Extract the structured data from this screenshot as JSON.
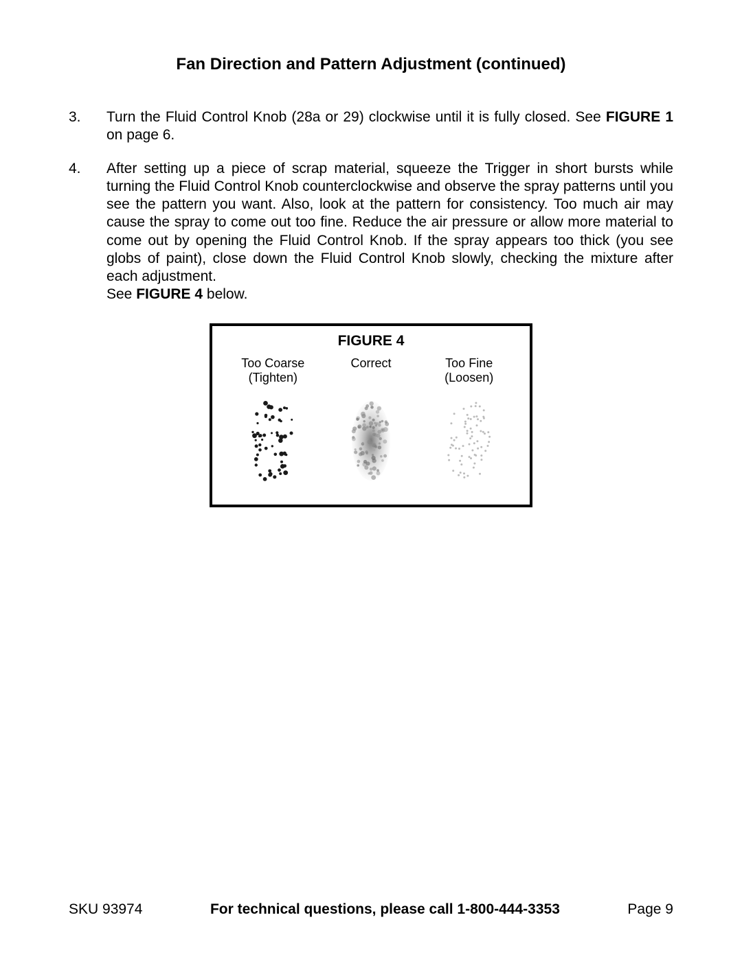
{
  "title": "Fan Direction and Pattern Adjustment (continued)",
  "items": [
    {
      "num": "3.",
      "text_pre": "Turn the Fluid Control Knob (28a or 29) clockwise until it is fully closed. See ",
      "bold": "FIGURE 1",
      "text_post": " on page 6."
    },
    {
      "num": "4.",
      "text_pre": "After setting up a piece of scrap material, squeeze the Trigger in short bursts while turning the Fluid Control Knob counterclockwise and observe the spray patterns until you see the pattern you want.  Also, look at the pattern for consistency.  Too much air may cause the spray to come out too fine.  Reduce the air pressure or allow more material to come out by opening the Fluid Control Knob.  If the spray appears too thick (you see globs of paint), close down the Fluid Control Knob slowly, checking the mixture after each adjustment.",
      "line2_pre": "See ",
      "line2_bold": "FIGURE 4",
      "line2_post": " below."
    }
  ],
  "figure": {
    "title": "FIGURE 4",
    "cols": [
      {
        "l1": "Too Coarse",
        "l2": "(Tighten)"
      },
      {
        "l1": "Correct",
        "l2": ""
      },
      {
        "l1": "Too Fine",
        "l2": "(Loosen)"
      }
    ],
    "patterns": {
      "coarse": {
        "dot_color": "#1a1a1a",
        "dot_size_min": 3,
        "dot_size_max": 7,
        "count": 55
      },
      "correct": {
        "color_dark": "#7a7a7a",
        "color_light": "#d8d8d8"
      },
      "fine": {
        "dot_color": "#bcbcbc",
        "dot_size": 3,
        "count": 70
      }
    }
  },
  "footer": {
    "left": "SKU 93974",
    "center": "For technical questions, please call 1-800-444-3353",
    "right": "Page 9"
  }
}
